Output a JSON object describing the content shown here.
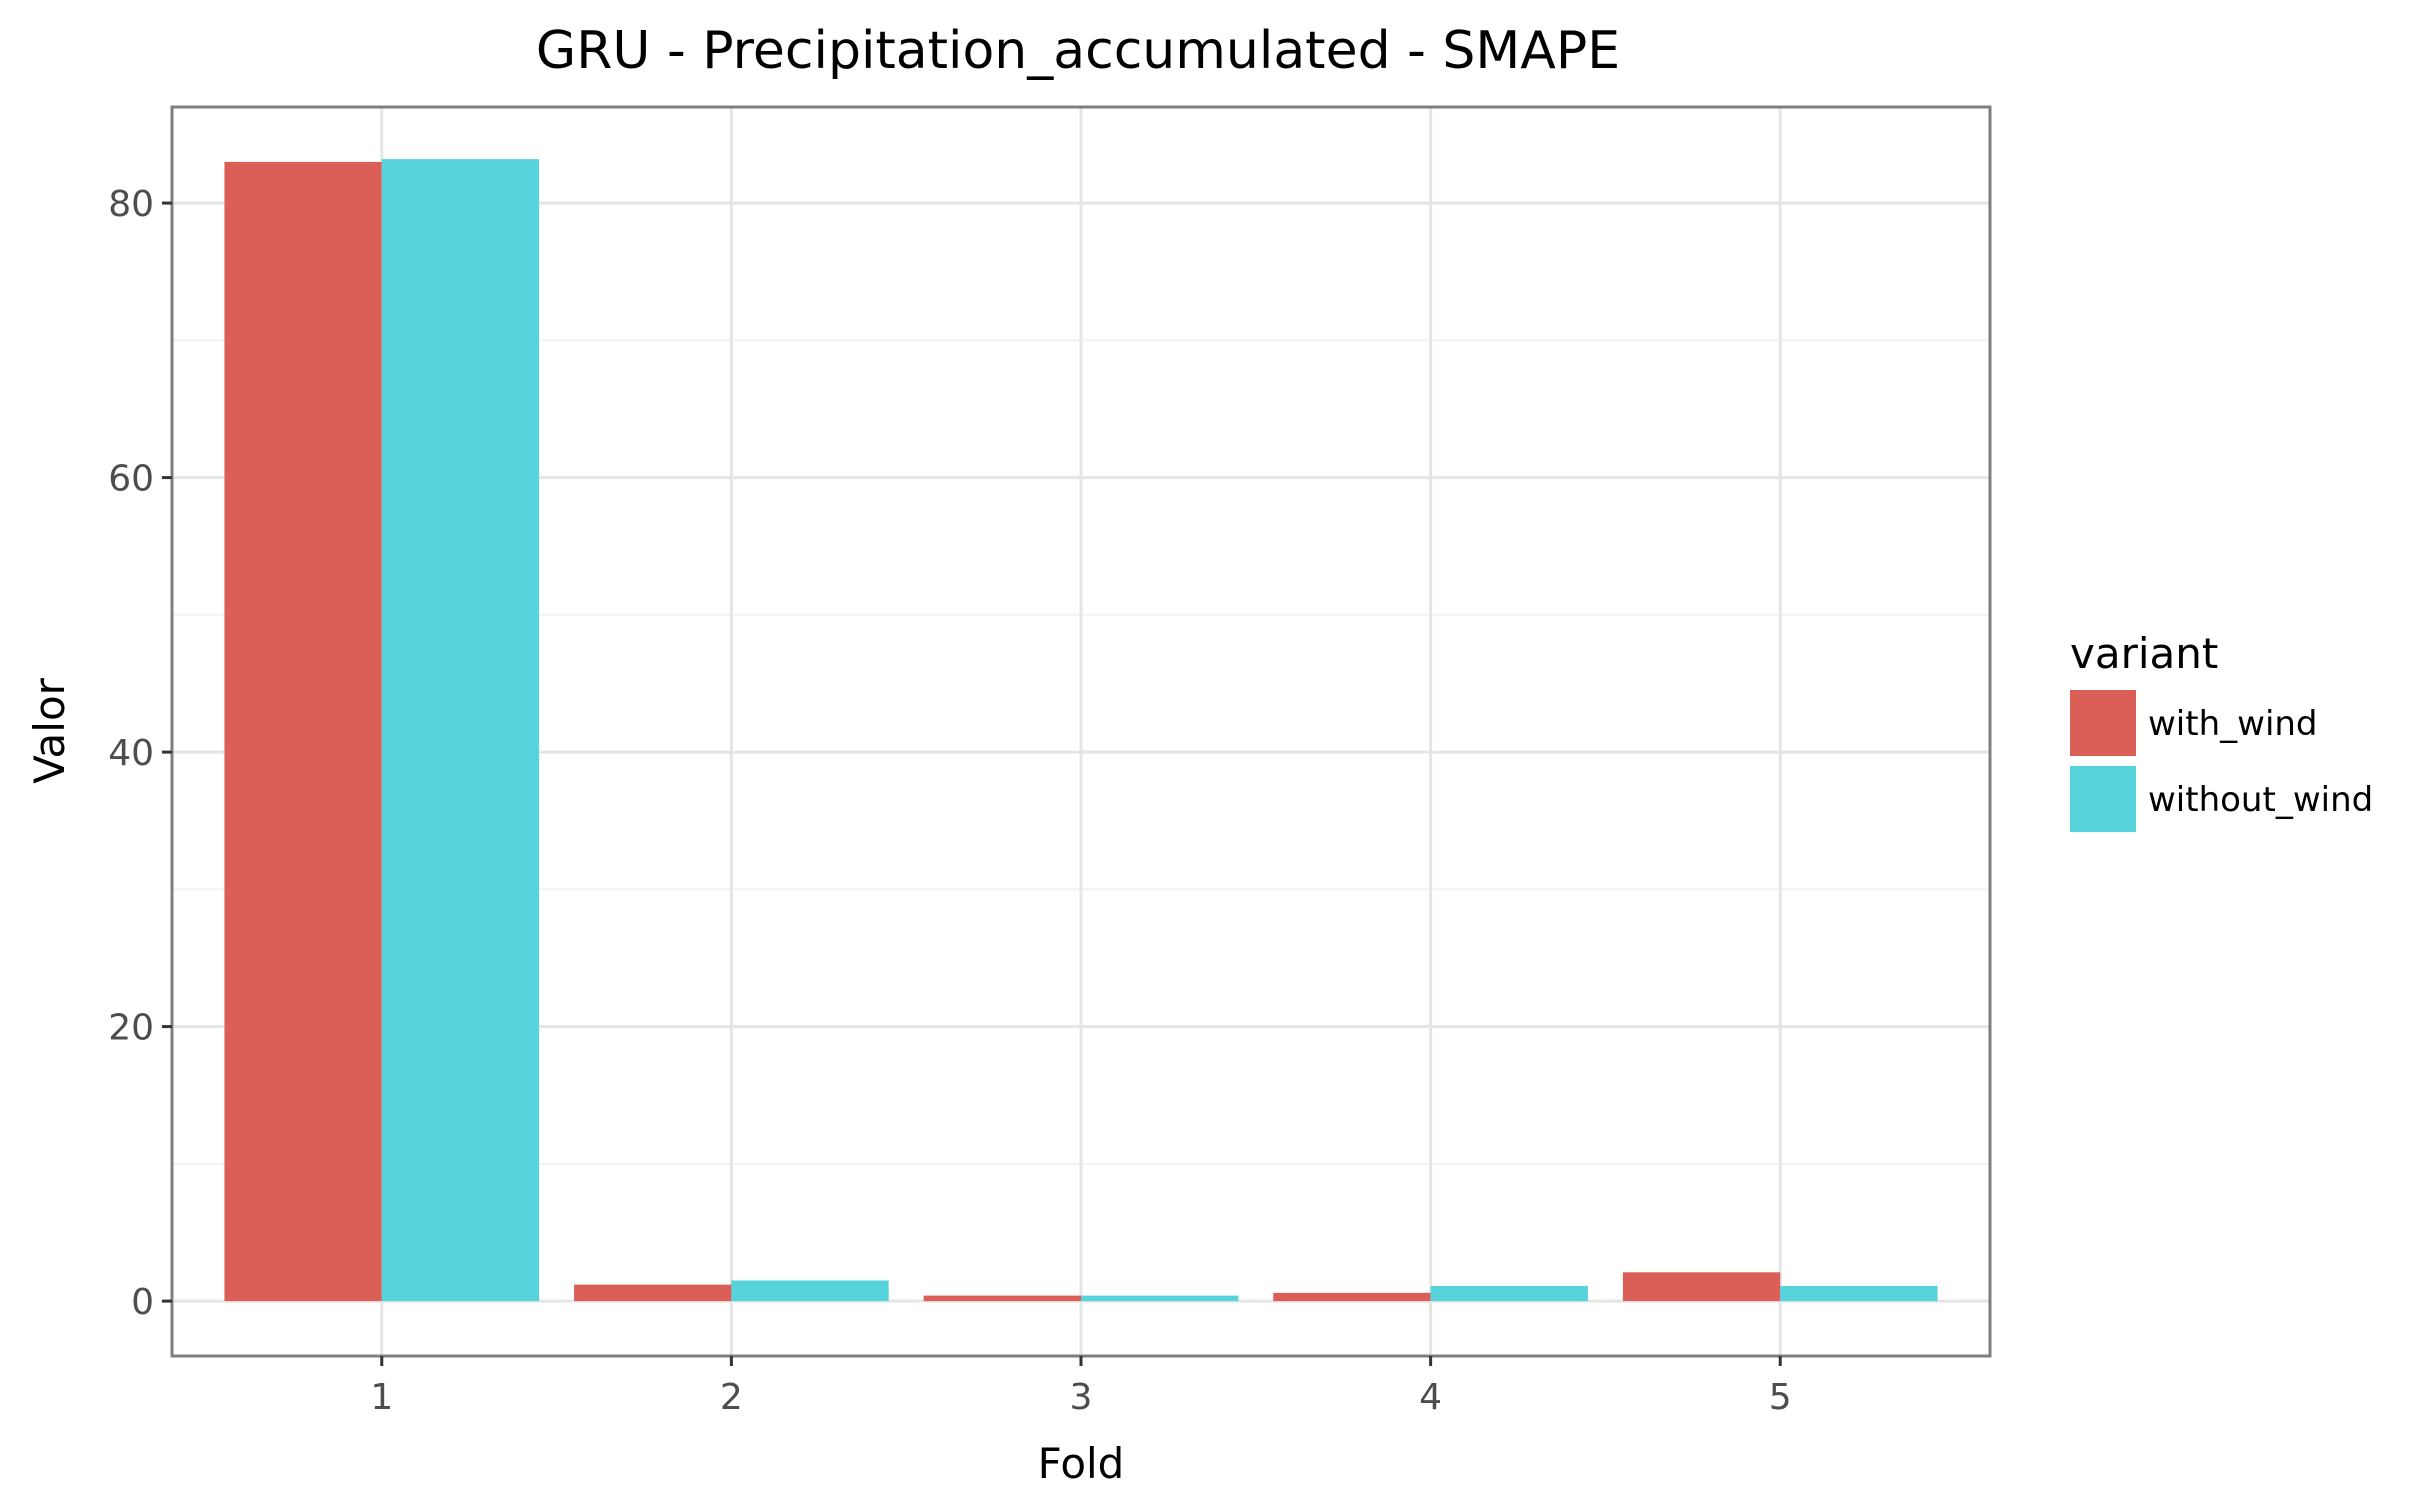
{
  "chart_data": {
    "type": "bar",
    "title": "GRU - Precipitation_accumulated - SMAPE",
    "xlabel": "Fold",
    "ylabel": "Valor",
    "categories": [
      "1",
      "2",
      "3",
      "4",
      "5"
    ],
    "series": [
      {
        "name": "with_wind",
        "color": "#DB5F57",
        "values": [
          83.0,
          1.2,
          0.4,
          0.6,
          2.1
        ]
      },
      {
        "name": "without_wind",
        "color": "#57D3DB",
        "values": [
          83.2,
          1.5,
          0.4,
          1.1,
          1.1
        ]
      }
    ],
    "ylim": [
      -4,
      87
    ],
    "yticks": [
      0,
      20,
      40,
      60,
      80
    ],
    "grid": true,
    "legend": {
      "title": "variant",
      "position": "right"
    }
  }
}
